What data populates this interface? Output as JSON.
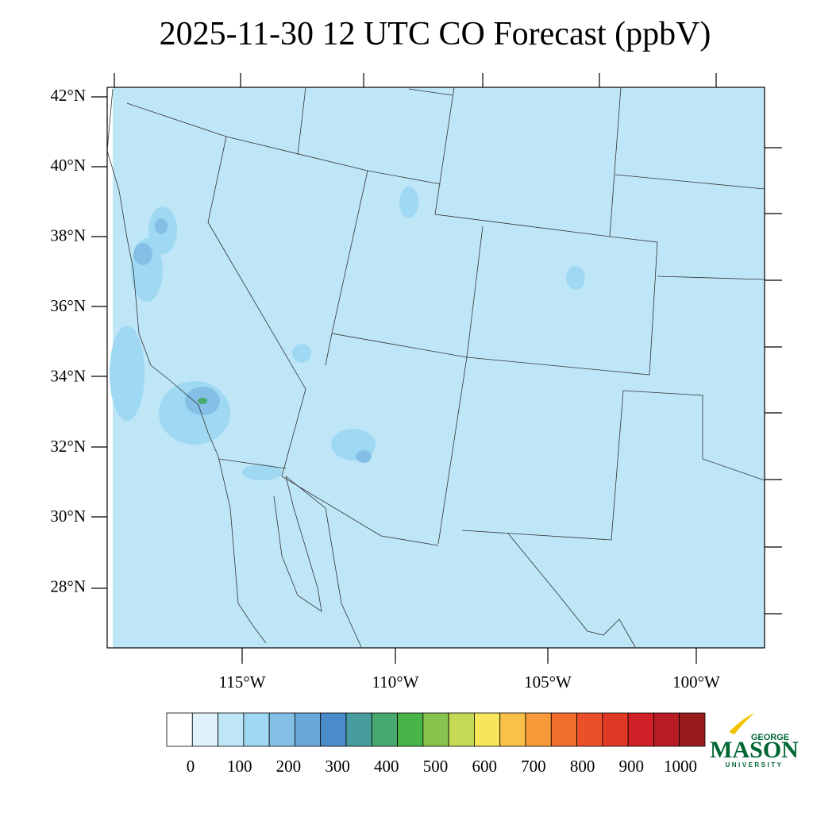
{
  "title": "2025-11-30 12 UTC CO Forecast (ppbV)",
  "lat_labels": [
    "42°N",
    "40°N",
    "38°N",
    "36°N",
    "34°N",
    "32°N",
    "30°N",
    "28°N"
  ],
  "lon_labels": [
    "115°W",
    "110°W",
    "105°W",
    "100°W"
  ],
  "colorbar": {
    "labels": [
      "0",
      "100",
      "200",
      "300",
      "400",
      "500",
      "600",
      "700",
      "800",
      "900",
      "1000"
    ],
    "colors": [
      "#ffffff",
      "#dff2fb",
      "#bee6f7",
      "#9fd8f2",
      "#84c0e6",
      "#6aa8dc",
      "#4a8cca",
      "#479d9e",
      "#47a870",
      "#47b547",
      "#86c44e",
      "#c4d956",
      "#f7e65a",
      "#f9c04a",
      "#f79a3a",
      "#f26e2c",
      "#ec502a",
      "#e03a26",
      "#d12027",
      "#b81c25",
      "#981b1e"
    ]
  },
  "logo": {
    "top": "GEORGE",
    "name": "MASON",
    "bottom": "UNIVERSITY"
  }
}
